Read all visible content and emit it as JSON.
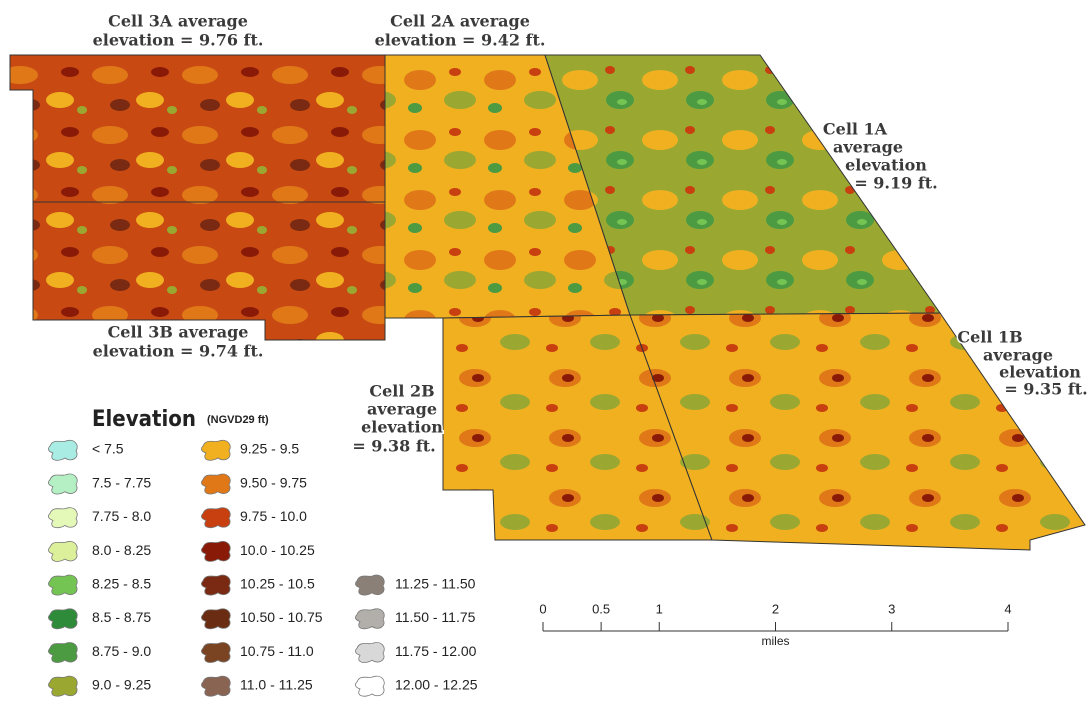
{
  "labels": [
    {
      "lines": [
        "Cell 3A average",
        "elevation = 9.76 ft."
      ]
    },
    {
      "lines": [
        "Cell 2A average",
        "elevation = 9.42 ft."
      ]
    },
    {
      "lines": [
        "Cell 1A",
        "average",
        "elevation",
        "= 9.19 ft."
      ]
    },
    {
      "lines": [
        "Cell 3B average",
        "elevation = 9.74 ft."
      ]
    },
    {
      "lines": [
        "Cell 2B",
        "average",
        "elevation",
        "= 9.38 ft."
      ]
    },
    {
      "lines": [
        "Cell 1B",
        "average",
        "elevation",
        "= 9.35 ft."
      ]
    }
  ],
  "legend": {
    "title": "Elevation",
    "subtitle": "(NGVD29 ft)",
    "items": [
      {
        "label": "< 7.5",
        "color": "#a8ece4"
      },
      {
        "label": "7.5 - 7.75",
        "color": "#b4f0c4"
      },
      {
        "label": "7.75 - 8.0",
        "color": "#e4f8b8"
      },
      {
        "label": "8.0 - 8.25",
        "color": "#dcf09c"
      },
      {
        "label": "8.25 - 8.5",
        "color": "#74c454"
      },
      {
        "label": "8.5 - 8.75",
        "color": "#2e8b3a"
      },
      {
        "label": "8.75 - 9.0",
        "color": "#4c9a42"
      },
      {
        "label": "9.0 - 9.25",
        "color": "#9aa832"
      },
      {
        "label": "9.25 - 9.5",
        "color": "#f0b020"
      },
      {
        "label": "9.50 - 9.75",
        "color": "#e07818"
      },
      {
        "label": "9.75 - 10.0",
        "color": "#c84010"
      },
      {
        "label": "10.0 - 10.25",
        "color": "#8a1a08"
      },
      {
        "label": "10.25 - 10.5",
        "color": "#7a2a12"
      },
      {
        "label": "10.50 - 10.75",
        "color": "#6a2c12"
      },
      {
        "label": "10.75 - 11.0",
        "color": "#7a4422"
      },
      {
        "label": "11.0 - 11.25",
        "color": "#8a6452"
      },
      {
        "label": "11.25 - 11.50",
        "color": "#8a8078"
      },
      {
        "label": "11.50 - 11.75",
        "color": "#b2aeaa"
      },
      {
        "label": "11.75 - 12.00",
        "color": "#d8d8d8"
      },
      {
        "label": "12.00 - 12.25",
        "color": "#ffffff"
      }
    ]
  },
  "scale": {
    "ticks": [
      0,
      0.5,
      1,
      2,
      3,
      4
    ],
    "unit": "miles"
  }
}
